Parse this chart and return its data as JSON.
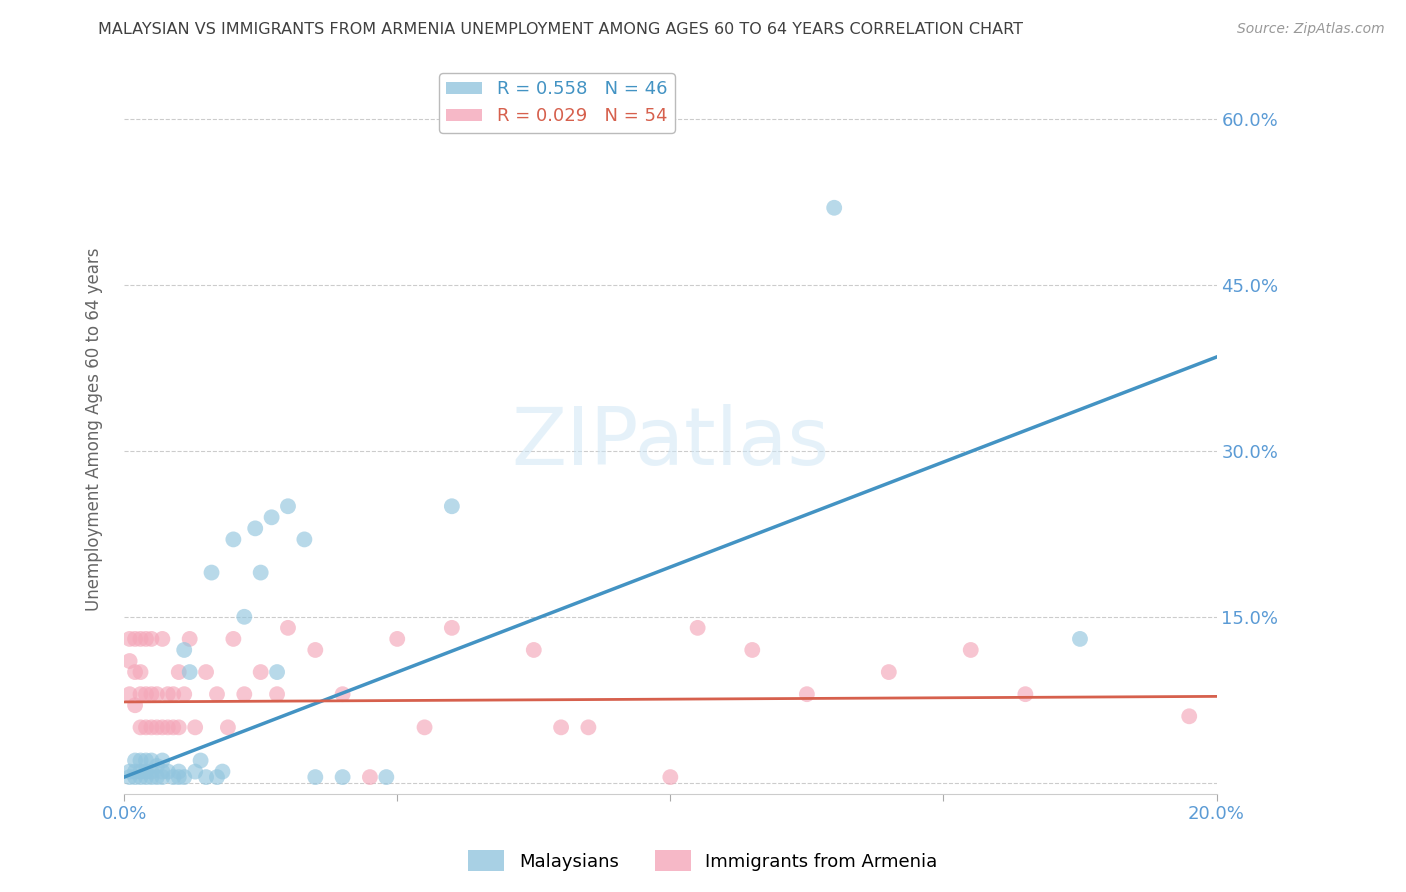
{
  "title": "MALAYSIAN VS IMMIGRANTS FROM ARMENIA UNEMPLOYMENT AMONG AGES 60 TO 64 YEARS CORRELATION CHART",
  "source": "Source: ZipAtlas.com",
  "ylabel": "Unemployment Among Ages 60 to 64 years",
  "xmin": 0.0,
  "xmax": 0.2,
  "ymin": -0.01,
  "ymax": 0.65,
  "yticks": [
    0.0,
    0.15,
    0.3,
    0.45,
    0.6
  ],
  "xticks": [
    0.0,
    0.05,
    0.1,
    0.15,
    0.2
  ],
  "xtick_labels": [
    "0.0%",
    "",
    "",
    "",
    "20.0%"
  ],
  "ytick_labels": [
    "",
    "15.0%",
    "30.0%",
    "45.0%",
    "60.0%"
  ],
  "blue_color": "#92c5de",
  "pink_color": "#f4a7b9",
  "blue_line_color": "#4393c3",
  "pink_line_color": "#d6604d",
  "axis_label_color": "#5b9bd5",
  "title_color": "#404040",
  "watermark": "ZIPatlas",
  "background_color": "#ffffff",
  "grid_color": "#cccccc",
  "blue_line_x0": 0.0,
  "blue_line_y0": 0.005,
  "blue_line_x1": 0.2,
  "blue_line_y1": 0.385,
  "pink_line_x0": 0.0,
  "pink_line_y0": 0.073,
  "pink_line_x1": 0.2,
  "pink_line_y1": 0.078,
  "blue_x": [
    0.001,
    0.001,
    0.002,
    0.002,
    0.002,
    0.003,
    0.003,
    0.003,
    0.004,
    0.004,
    0.004,
    0.005,
    0.005,
    0.005,
    0.006,
    0.006,
    0.007,
    0.007,
    0.007,
    0.008,
    0.009,
    0.01,
    0.01,
    0.011,
    0.011,
    0.012,
    0.013,
    0.014,
    0.015,
    0.016,
    0.017,
    0.018,
    0.02,
    0.022,
    0.024,
    0.025,
    0.027,
    0.028,
    0.03,
    0.033,
    0.035,
    0.04,
    0.048,
    0.06,
    0.13,
    0.175
  ],
  "blue_y": [
    0.005,
    0.01,
    0.005,
    0.01,
    0.02,
    0.005,
    0.01,
    0.02,
    0.005,
    0.01,
    0.02,
    0.005,
    0.01,
    0.02,
    0.005,
    0.015,
    0.005,
    0.01,
    0.02,
    0.01,
    0.005,
    0.005,
    0.01,
    0.005,
    0.12,
    0.1,
    0.01,
    0.02,
    0.005,
    0.19,
    0.005,
    0.01,
    0.22,
    0.15,
    0.23,
    0.19,
    0.24,
    0.1,
    0.25,
    0.22,
    0.005,
    0.005,
    0.005,
    0.25,
    0.52,
    0.13
  ],
  "pink_x": [
    0.001,
    0.001,
    0.001,
    0.002,
    0.002,
    0.002,
    0.003,
    0.003,
    0.003,
    0.003,
    0.004,
    0.004,
    0.004,
    0.005,
    0.005,
    0.005,
    0.006,
    0.006,
    0.007,
    0.007,
    0.008,
    0.008,
    0.009,
    0.009,
    0.01,
    0.01,
    0.011,
    0.012,
    0.013,
    0.015,
    0.017,
    0.019,
    0.02,
    0.022,
    0.025,
    0.028,
    0.03,
    0.035,
    0.04,
    0.045,
    0.05,
    0.055,
    0.06,
    0.075,
    0.08,
    0.085,
    0.1,
    0.105,
    0.115,
    0.125,
    0.14,
    0.155,
    0.165,
    0.195
  ],
  "pink_y": [
    0.08,
    0.11,
    0.13,
    0.07,
    0.1,
    0.13,
    0.05,
    0.08,
    0.1,
    0.13,
    0.05,
    0.08,
    0.13,
    0.05,
    0.08,
    0.13,
    0.05,
    0.08,
    0.05,
    0.13,
    0.05,
    0.08,
    0.05,
    0.08,
    0.05,
    0.1,
    0.08,
    0.13,
    0.05,
    0.1,
    0.08,
    0.05,
    0.13,
    0.08,
    0.1,
    0.08,
    0.14,
    0.12,
    0.08,
    0.005,
    0.13,
    0.05,
    0.14,
    0.12,
    0.05,
    0.05,
    0.005,
    0.14,
    0.12,
    0.08,
    0.1,
    0.12,
    0.08,
    0.06
  ]
}
